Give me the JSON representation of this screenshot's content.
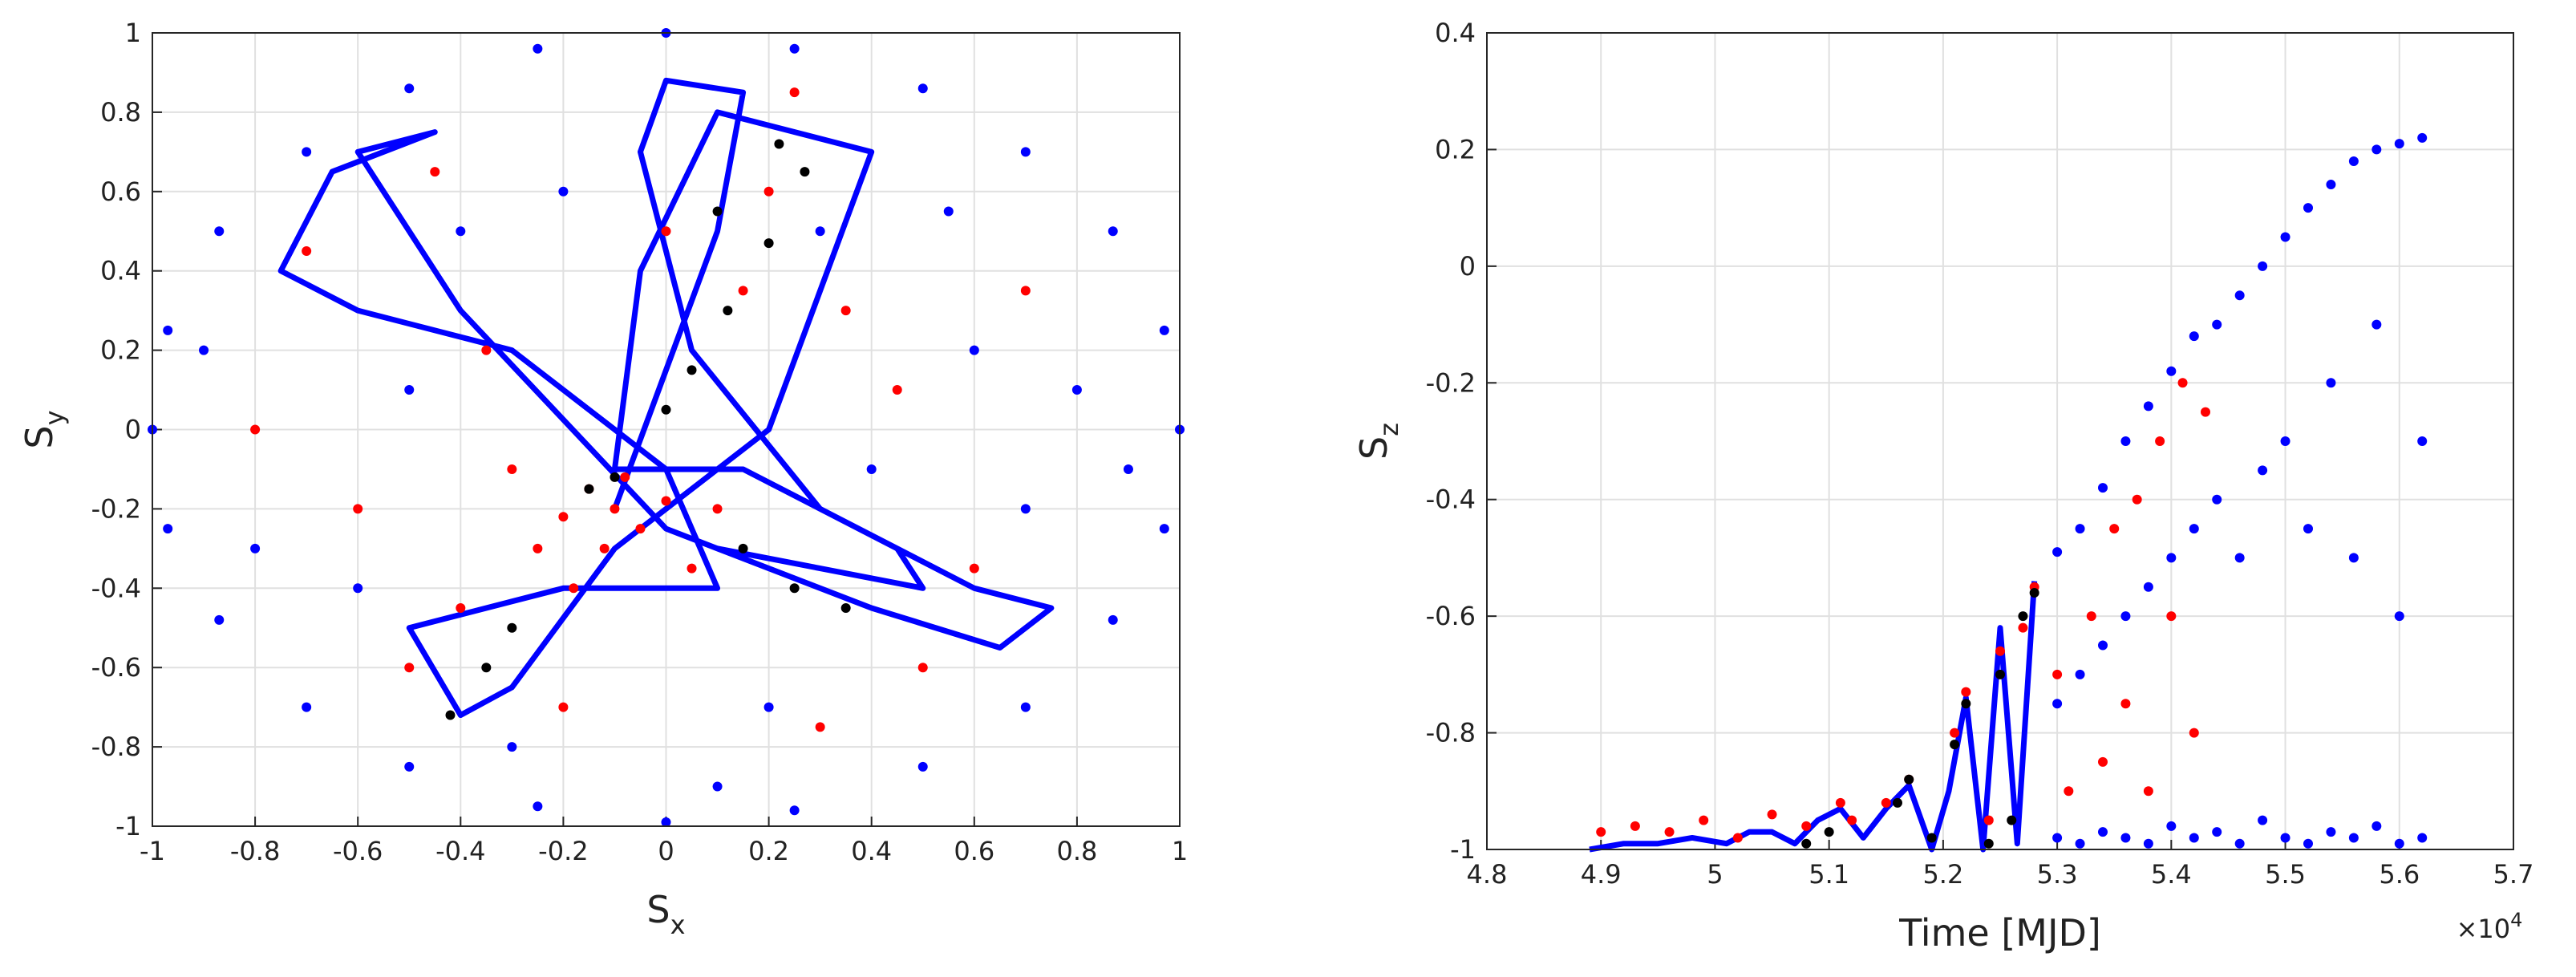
{
  "chart_data": [
    {
      "type": "scatter",
      "grid": true,
      "xlabel": {
        "text": "S",
        "subscript": "x"
      },
      "ylabel": {
        "text": "S",
        "subscript": "y"
      },
      "xlim": [
        -1,
        1
      ],
      "ylim": [
        -1,
        1
      ],
      "xticks": [
        -1,
        -0.8,
        -0.6,
        -0.4,
        -0.2,
        0,
        0.2,
        0.4,
        0.6,
        0.8,
        1
      ],
      "yticks": [
        -1,
        -0.8,
        -0.6,
        -0.4,
        -0.2,
        0,
        0.2,
        0.4,
        0.6,
        0.8,
        1
      ],
      "series": [
        {
          "color": "#0000ff",
          "x": [
            1,
            0.97,
            0.87,
            0.7,
            0.5,
            0.25,
            0,
            -0.25,
            -0.5,
            -0.7,
            -0.87,
            -0.97,
            -1,
            -0.97,
            -0.87,
            -0.7,
            -0.5,
            -0.25,
            0,
            0.25,
            0.5,
            0.7,
            0.87,
            0.97,
            0.6,
            0.3,
            -0.5,
            -0.3,
            0.2,
            0.8,
            -0.8,
            0.4,
            -0.2,
            0.55,
            -0.6,
            0.1,
            0.7,
            -0.4,
            0.9,
            -0.9
          ],
          "values": [
            0,
            0.25,
            0.5,
            0.7,
            0.86,
            0.96,
            1,
            0.96,
            0.86,
            0.7,
            0.5,
            0.25,
            0,
            -0.25,
            -0.48,
            -0.7,
            -0.85,
            -0.95,
            -0.99,
            -0.96,
            -0.85,
            -0.7,
            -0.48,
            -0.25,
            0.2,
            0.5,
            0.1,
            -0.8,
            -0.7,
            0.1,
            -0.3,
            -0.1,
            0.6,
            0.55,
            -0.4,
            -0.9,
            -0.2,
            0.5,
            -0.1,
            0.2
          ]
        },
        {
          "color": "#0000ff",
          "type": "line",
          "x": [
            -0.1,
            0.1,
            0.15,
            0,
            -0.05,
            0.05,
            0.3,
            0.6,
            0.75,
            0.65,
            0.4,
            0,
            -0.4,
            -0.6,
            -0.45,
            -0.65,
            -0.75,
            -0.6,
            -0.3,
            0,
            0.1,
            -0.2,
            -0.5,
            -0.4,
            -0.3,
            -0.1,
            0.2,
            0.4,
            0.1,
            -0.05,
            -0.1,
            0.15,
            0.45,
            0.5,
            0.3,
            0.1
          ],
          "values": [
            -0.2,
            0.5,
            0.85,
            0.88,
            0.7,
            0.2,
            -0.2,
            -0.4,
            -0.45,
            -0.55,
            -0.45,
            -0.25,
            0.3,
            0.7,
            0.75,
            0.65,
            0.4,
            0.3,
            0.2,
            -0.1,
            -0.4,
            -0.4,
            -0.5,
            -0.72,
            -0.65,
            -0.3,
            0,
            0.7,
            0.8,
            0.4,
            -0.1,
            -0.1,
            -0.3,
            -0.4,
            -0.35,
            -0.3
          ]
        },
        {
          "color": "#ff0000",
          "x": [
            -0.1,
            -0.15,
            -0.05,
            -0.2,
            0,
            -0.12,
            -0.08,
            -0.25,
            0.05,
            -0.3,
            0.1,
            -0.18,
            0.2,
            0.25,
            -0.45,
            -0.7,
            0.35,
            -0.5,
            0.5,
            0.45,
            -0.35,
            0.15,
            -0.6,
            0.6,
            -0.2,
            0.3,
            -0.8,
            0,
            0.7,
            -0.4
          ],
          "values": [
            -0.2,
            -0.15,
            -0.25,
            -0.22,
            -0.18,
            -0.3,
            -0.12,
            -0.3,
            -0.35,
            -0.1,
            -0.2,
            -0.4,
            0.6,
            0.85,
            0.65,
            0.45,
            0.3,
            -0.6,
            -0.6,
            0.1,
            0.2,
            0.35,
            -0.2,
            -0.35,
            -0.7,
            -0.75,
            0,
            0.5,
            0.35,
            -0.45
          ]
        },
        {
          "color": "#000000",
          "x": [
            -0.15,
            -0.1,
            0,
            0.05,
            0.12,
            0.2,
            0.27,
            0.22,
            0.1,
            0.15,
            0.25,
            0.35,
            -0.35,
            -0.42,
            -0.3
          ],
          "values": [
            -0.15,
            -0.12,
            0.05,
            0.15,
            0.3,
            0.47,
            0.65,
            0.72,
            0.55,
            -0.3,
            -0.4,
            -0.45,
            -0.6,
            -0.72,
            -0.5
          ]
        }
      ]
    },
    {
      "type": "scatter",
      "grid": true,
      "xlabel": {
        "text": "Time [MJD]"
      },
      "ylabel": {
        "text": "S",
        "subscript": "z"
      },
      "x_exponent_label": {
        "base": "×10",
        "exponent": "4"
      },
      "xlim": [
        4.8,
        5.7
      ],
      "ylim": [
        -1,
        0.4
      ],
      "xticks": [
        4.8,
        4.9,
        5,
        5.1,
        5.2,
        5.3,
        5.4,
        5.5,
        5.6,
        5.7
      ],
      "yticks": [
        -1,
        -0.8,
        -0.6,
        -0.4,
        -0.2,
        0,
        0.2,
        0.4
      ],
      "series": [
        {
          "color": "#0000ff",
          "type": "line",
          "x": [
            4.89,
            4.92,
            4.95,
            4.98,
            5.01,
            5.03,
            5.05,
            5.07,
            5.09,
            5.11,
            5.13,
            5.15,
            5.17,
            5.19,
            5.205,
            5.22,
            5.235,
            5.25,
            5.265,
            5.28
          ],
          "values": [
            -1,
            -0.99,
            -0.99,
            -0.98,
            -0.99,
            -0.97,
            -0.97,
            -0.99,
            -0.95,
            -0.93,
            -0.98,
            -0.93,
            -0.89,
            -1,
            -0.9,
            -0.74,
            -1,
            -0.62,
            -0.99,
            -0.54
          ]
        },
        {
          "color": "#0000ff",
          "x": [
            5.3,
            5.3,
            5.3,
            5.32,
            5.32,
            5.32,
            5.34,
            5.34,
            5.34,
            5.36,
            5.36,
            5.36,
            5.38,
            5.38,
            5.38,
            5.4,
            5.4,
            5.4,
            5.42,
            5.42,
            5.42,
            5.44,
            5.44,
            5.44,
            5.46,
            5.46,
            5.46,
            5.48,
            5.48,
            5.48,
            5.5,
            5.5,
            5.5,
            5.52,
            5.52,
            5.52,
            5.54,
            5.54,
            5.54,
            5.56,
            5.56,
            5.56,
            5.58,
            5.58,
            5.58,
            5.6,
            5.6,
            5.6,
            5.62,
            5.62,
            5.62
          ],
          "values": [
            -0.49,
            -0.75,
            -0.98,
            -0.45,
            -0.7,
            -0.99,
            -0.38,
            -0.65,
            -0.97,
            -0.3,
            -0.6,
            -0.98,
            -0.24,
            -0.55,
            -0.99,
            -0.18,
            -0.5,
            -0.96,
            -0.12,
            -0.45,
            -0.98,
            -0.1,
            -0.4,
            -0.97,
            -0.05,
            -0.5,
            -0.99,
            0,
            -0.35,
            -0.95,
            0.05,
            -0.3,
            -0.98,
            0.1,
            -0.45,
            -0.99,
            0.14,
            -0.2,
            -0.97,
            0.18,
            -0.5,
            -0.98,
            0.2,
            -0.1,
            -0.96,
            0.21,
            -0.6,
            -0.99,
            0.22,
            -0.3,
            -0.98
          ]
        },
        {
          "color": "#ff0000",
          "x": [
            4.9,
            4.93,
            4.96,
            4.99,
            5.02,
            5.05,
            5.08,
            5.11,
            5.12,
            5.15,
            5.17,
            5.21,
            5.22,
            5.24,
            5.25,
            5.27,
            5.28,
            5.3,
            5.31,
            5.33,
            5.34,
            5.35,
            5.36,
            5.37,
            5.38,
            5.39,
            5.4,
            5.41,
            5.42,
            5.43
          ],
          "values": [
            -0.97,
            -0.96,
            -0.97,
            -0.95,
            -0.98,
            -0.94,
            -0.96,
            -0.92,
            -0.95,
            -0.92,
            -0.88,
            -0.8,
            -0.73,
            -0.95,
            -0.66,
            -0.62,
            -0.55,
            -0.7,
            -0.9,
            -0.6,
            -0.85,
            -0.45,
            -0.75,
            -0.4,
            -0.9,
            -0.3,
            -0.6,
            -0.2,
            -0.8,
            -0.25
          ]
        },
        {
          "color": "#000000",
          "x": [
            5.08,
            5.1,
            5.16,
            5.17,
            5.19,
            5.21,
            5.22,
            5.24,
            5.25,
            5.26,
            5.27,
            5.28
          ],
          "values": [
            -0.99,
            -0.97,
            -0.92,
            -0.88,
            -0.98,
            -0.82,
            -0.75,
            -0.99,
            -0.7,
            -0.95,
            -0.6,
            -0.56
          ]
        }
      ]
    }
  ]
}
